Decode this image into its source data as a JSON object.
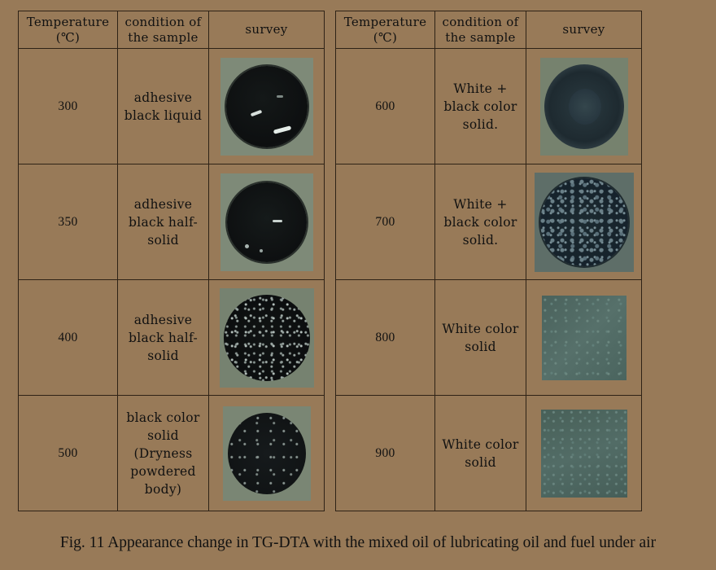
{
  "headers": {
    "temperature": "Temperature",
    "temperature_unit": "(℃)",
    "condition_line1": "condition of",
    "condition_line2": "the sample",
    "survey": "survey"
  },
  "left_rows": [
    {
      "temperature": "300",
      "condition": "adhesive\nblack liquid",
      "photo": "black-liquid-sample-photo"
    },
    {
      "temperature": "350",
      "condition": "adhesive\nblack half-\nsolid",
      "photo": "black-half-solid-sample-photo"
    },
    {
      "temperature": "400",
      "condition": "adhesive\nblack half-\nsolid",
      "photo": "black-half-solid-speckled-sample-photo"
    },
    {
      "temperature": "500",
      "condition": "black color\nsolid\n(Dryness\npowdered\nbody)",
      "photo": "black-powder-solid-sample-photo"
    }
  ],
  "right_rows": [
    {
      "temperature": "600",
      "condition": "White +\nblack color\nsolid.",
      "photo": "white-black-solid-sample-photo"
    },
    {
      "temperature": "700",
      "condition": "White +\nblack color\nsolid.",
      "photo": "white-black-solid-speckled-sample-photo"
    },
    {
      "temperature": "800",
      "condition": "White color\nsolid",
      "photo": "white-solid-sample-photo"
    },
    {
      "temperature": "900",
      "condition": "White color\nsolid",
      "photo": "white-solid-sample-photo"
    }
  ],
  "caption": "Fig. 11   Appearance change in TG-DTA with the mixed oil of lubricating oil and fuel under air"
}
